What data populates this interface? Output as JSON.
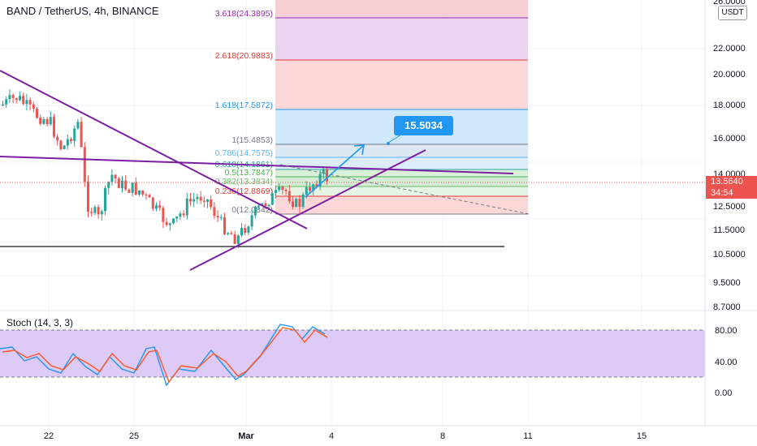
{
  "title": "BAND / TetherUS, 4h, BINANCE",
  "unit": "USDT",
  "stoch_label": "Stoch (14, 3, 3)",
  "current_price": "13.5640",
  "countdown": "34:54",
  "target_label": "15.5034",
  "colors": {
    "up": "#26a69a",
    "down": "#ef5350",
    "trendline": "#7b1fa2",
    "arrow": "#2196f3",
    "stoch_k": "#2196f3",
    "stoch_d": "#ff5722",
    "stoch_band": "#d9c4f5"
  },
  "chart_data": [
    {
      "type": "candlestick",
      "title": "BAND / TetherUS, 4h, BINANCE",
      "y_axis_ticks": [
        "26.0000",
        "22.0000",
        "20.0000",
        "18.0000",
        "16.0000",
        "14.0000",
        "12.5000",
        "11.5000",
        "10.5000",
        "9.5000",
        "8.7000"
      ],
      "x_axis_ticks": [
        "22",
        "25",
        "Mar",
        "4",
        "8",
        "11",
        "15"
      ],
      "fib_levels": [
        {
          "label": "3.618(24.3895)",
          "value": 24.3895
        },
        {
          "label": "2.618(20.9883)",
          "value": 20.9883
        },
        {
          "label": "1.618(17.5872)",
          "value": 17.5872
        },
        {
          "label": "1(15.4853)",
          "value": 15.4853
        },
        {
          "label": "0.786(14.7575)",
          "value": 14.7575
        },
        {
          "label": "0.618(14.1861)",
          "value": 14.1861
        },
        {
          "label": "0.5(13.7847)",
          "value": 13.7847
        },
        {
          "label": "0.382(13.3834)",
          "value": 13.3834
        },
        {
          "label": "0.236(12.8869)",
          "value": 12.8869
        },
        {
          "label": "0(12.0842)",
          "value": 12.0842
        }
      ],
      "support_level": 10.8,
      "current_price": 13.564,
      "target": 15.5034
    },
    {
      "type": "line",
      "title": "Stoch (14, 3, 3)",
      "y_axis_ticks": [
        "80.00",
        "40.00",
        "0.00"
      ],
      "bands": [
        20,
        80
      ]
    }
  ]
}
